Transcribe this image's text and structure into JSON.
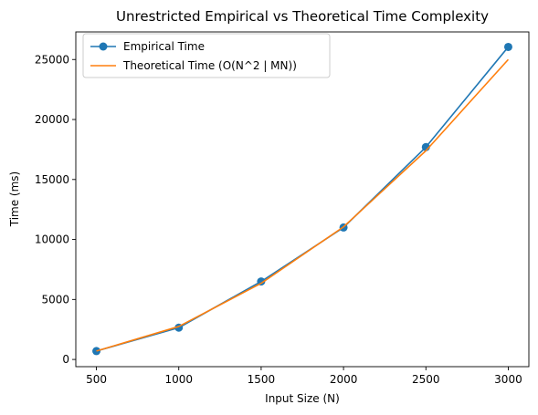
{
  "chart_data": {
    "type": "line",
    "title": "Unrestricted Empirical vs Theoretical Time Complexity",
    "xlabel": "Input Size (N)",
    "ylabel": "Time (ms)",
    "x": [
      500,
      1000,
      1500,
      2000,
      2500,
      3000
    ],
    "xlim": [
      375,
      3125
    ],
    "ylim": [
      -600,
      27300
    ],
    "xticks": [
      500,
      1000,
      1500,
      2000,
      2500,
      3000
    ],
    "yticks": [
      0,
      5000,
      10000,
      15000,
      20000,
      25000
    ],
    "grid": false,
    "legend_position": "top-left",
    "series": [
      {
        "name": "Empirical Time",
        "values": [
          700,
          2650,
          6500,
          11000,
          17700,
          26050
        ],
        "color": "#1f77b4",
        "marker": "circle"
      },
      {
        "name": "Theoretical Time (O(N^2 | MN))",
        "values": [
          700,
          2750,
          6350,
          11050,
          17400,
          25000
        ],
        "color": "#ff7f0e",
        "marker": "none"
      }
    ]
  }
}
